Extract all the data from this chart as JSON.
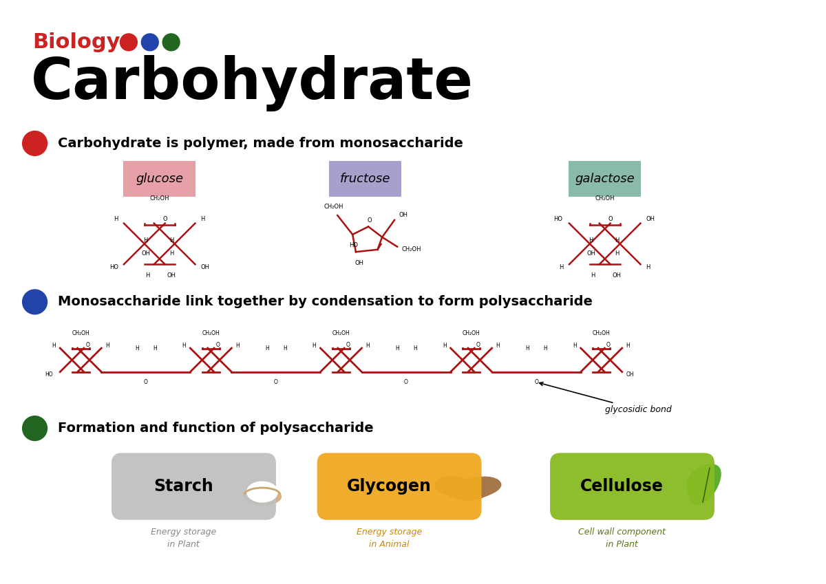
{
  "title_biology": "Biology",
  "title_main": "Carbohydrate",
  "dot_colors": [
    "#CC2222",
    "#2244AA",
    "#226622"
  ],
  "section1_bullet_color": "#CC2222",
  "section2_bullet_color": "#2244AA",
  "section3_bullet_color": "#226622",
  "section1_text": "Carbohydrate is polymer, made from monosaccharide",
  "section2_text": "Monosaccharide link together by condensation to form polysaccharide",
  "section3_text": "Formation and function of polysaccharide",
  "sugar_labels": [
    "glucose",
    "fructose",
    "galactose"
  ],
  "sugar_label_bg": [
    "#E8A0A8",
    "#A8A0CC",
    "#8ABBA8"
  ],
  "polysaccharide_labels": [
    "Starch",
    "Glycogen",
    "Cellulose"
  ],
  "polysaccharide_box_colors": [
    "#C0C0C0",
    "#F0A820",
    "#88BB22"
  ],
  "polysaccharide_desc": [
    "Energy storage\nin Plant",
    "Energy storage\nin Animal",
    "Cell wall component\nin Plant"
  ],
  "polysaccharide_desc_colors": [
    "#888888",
    "#CC8800",
    "#557711"
  ],
  "glycosidic_bond_text": "glycosidic bond",
  "bg_color": "#FFFFFF",
  "ring_color": "#AA1111"
}
